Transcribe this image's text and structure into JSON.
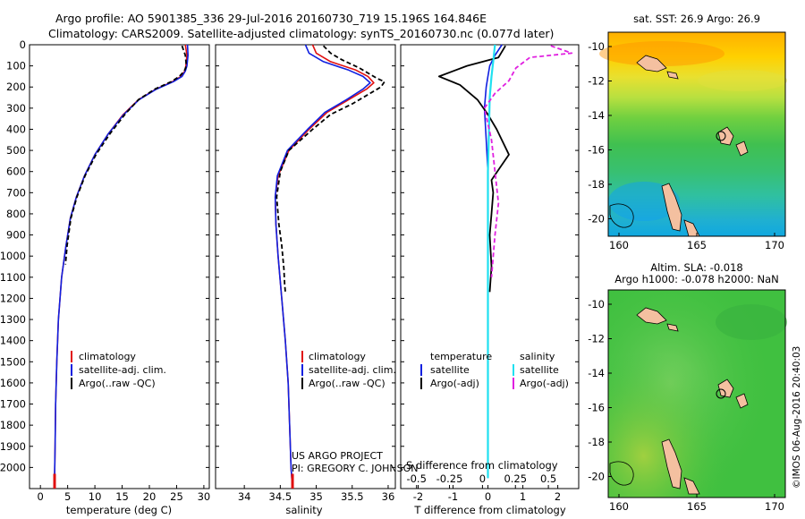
{
  "header": {
    "line1": "Argo profile: AO 5901385_336 29-Jul-2016 20160730_719 15.196S 164.846E",
    "line2": "Climatology: CARS2009. Satellite-adjusted climatology: synTS_20160730.nc (0.077d later)"
  },
  "colors": {
    "climatology": "#e01010",
    "satellite": "#1020e0",
    "argo": "#000000",
    "sat_salinity": "#20e0f0",
    "argo_salinity": "#e020e0"
  },
  "credits": {
    "line1": "US ARGO PROJECT",
    "line2": "PI: GREGORY C. JOHNSON",
    "imos": "©IMOS 06-Aug-2016 20:40:03"
  },
  "chart_data": [
    {
      "type": "line",
      "panel": "temperature",
      "xlabel": "temperature (deg C)",
      "ylabel": "",
      "xlim": [
        -2,
        31
      ],
      "ylim": [
        2100,
        0
      ],
      "xticks": [
        "0",
        "5",
        "10",
        "15",
        "20",
        "25",
        "30"
      ],
      "yticks": [
        "0",
        "100",
        "200",
        "300",
        "400",
        "500",
        "600",
        "700",
        "800",
        "900",
        "1000",
        "1100",
        "1200",
        "1300",
        "1400",
        "1500",
        "1600",
        "1700",
        "1800",
        "1900",
        "2000"
      ],
      "legend": [
        "climatology",
        "satellite-adj. clim.",
        "Argo(..raw -QC)"
      ],
      "series": [
        {
          "name": "climatology",
          "x": [
            26.6,
            26.9,
            26.7,
            26.5,
            25.8,
            24.2,
            21.2,
            18.0,
            15.2,
            12.5,
            10.0,
            8.1,
            6.6,
            5.5,
            4.7,
            3.9,
            3.3,
            3.0,
            2.8,
            2.7,
            2.6,
            2.5
          ],
          "y": [
            0,
            50,
            100,
            125,
            150,
            175,
            210,
            260,
            330,
            420,
            520,
            620,
            720,
            820,
            950,
            1100,
            1300,
            1500,
            1700,
            1900,
            2050,
            2100
          ]
        },
        {
          "name": "satellite-adj. clim.",
          "x": [
            27.0,
            27.1,
            26.9,
            26.6,
            26.0,
            24.4,
            21.3,
            18.1,
            15.3,
            12.5,
            10.0,
            8.1,
            6.6,
            5.5,
            4.7,
            3.9,
            3.3,
            3.0,
            2.8,
            2.7,
            2.6,
            2.5
          ],
          "y": [
            0,
            50,
            100,
            125,
            150,
            175,
            210,
            260,
            330,
            420,
            520,
            620,
            720,
            820,
            950,
            1100,
            1300,
            1500,
            1700,
            1900,
            2050,
            2100
          ]
        },
        {
          "name": "Argo(..raw -QC)",
          "x": [
            26.0,
            26.6,
            26.8,
            26.4,
            25.5,
            24.0,
            21.0,
            18.0,
            15.5,
            12.8,
            10.2,
            8.2,
            6.7,
            5.6,
            4.9,
            4.6
          ],
          "y": [
            5,
            50,
            100,
            125,
            150,
            175,
            210,
            260,
            330,
            420,
            520,
            620,
            720,
            820,
            950,
            1040
          ]
        }
      ]
    },
    {
      "type": "line",
      "panel": "salinity",
      "xlabel": "salinity",
      "ylabel": "",
      "xlim": [
        33.6,
        36.1
      ],
      "ylim": [
        2100,
        0
      ],
      "xticks": [
        "34",
        "34.5",
        "35",
        "35.5",
        "36"
      ],
      "legend": [
        "climatology",
        "satellite-adj. clim.",
        "Argo(..raw -QC)"
      ],
      "series": [
        {
          "name": "climatology",
          "x": [
            34.95,
            35.0,
            35.2,
            35.55,
            35.72,
            35.8,
            35.7,
            35.45,
            35.15,
            34.9,
            34.62,
            34.47,
            34.43,
            34.44,
            34.47,
            34.52,
            34.57,
            34.61,
            34.63,
            34.65,
            34.67
          ],
          "y": [
            0,
            40,
            80,
            120,
            150,
            180,
            210,
            260,
            320,
            400,
            500,
            620,
            720,
            850,
            1000,
            1200,
            1400,
            1600,
            1800,
            2000,
            2100
          ]
        },
        {
          "name": "satellite-adj. clim.",
          "x": [
            34.85,
            34.9,
            35.1,
            35.45,
            35.65,
            35.75,
            35.65,
            35.42,
            35.12,
            34.88,
            34.6,
            34.46,
            34.43,
            34.44,
            34.47,
            34.52,
            34.57,
            34.61,
            34.63,
            34.65,
            34.67
          ],
          "y": [
            0,
            40,
            80,
            120,
            150,
            180,
            210,
            260,
            320,
            400,
            500,
            620,
            720,
            850,
            1000,
            1200,
            1400,
            1600,
            1800,
            2000,
            2100
          ]
        },
        {
          "name": "Argo(..raw -QC)",
          "x": [
            35.1,
            35.2,
            35.35,
            35.6,
            35.75,
            35.85,
            35.95,
            35.9,
            35.7,
            35.5,
            35.2,
            34.95,
            34.62,
            34.5,
            34.45,
            34.48,
            34.52,
            34.55,
            34.56,
            34.57
          ],
          "y": [
            5,
            40,
            70,
            110,
            140,
            160,
            175,
            200,
            240,
            280,
            330,
            400,
            500,
            600,
            720,
            850,
            950,
            1060,
            1130,
            1170
          ]
        }
      ]
    },
    {
      "type": "line",
      "panel": "difference",
      "xlabel": "T difference from climatology",
      "xlabel2": "S difference from climatology",
      "xlim": [
        -2.5,
        2.6
      ],
      "ylim": [
        2100,
        0
      ],
      "xticks": [
        "-2",
        "-1",
        "0",
        "1",
        "2"
      ],
      "xticks2": [
        "-0.5",
        "-0.25",
        "0",
        "0.25",
        "0.5"
      ],
      "legend": [
        "temperature",
        "salinity",
        "satellite",
        "satellite",
        "Argo(-adj)",
        "Argo(-adj)"
      ],
      "series": [
        {
          "name": "satellite",
          "x": [
            0.4,
            0.2,
            0.05,
            0.0,
            -0.05,
            -0.1,
            -0.05,
            0.0,
            0.0,
            0.0,
            0.0,
            0.0
          ],
          "y": [
            0,
            50,
            100,
            150,
            200,
            300,
            450,
            600,
            800,
            1100,
            1500,
            2050
          ]
        },
        {
          "name": "Argo(-adj)",
          "x": [
            0.5,
            0.3,
            -0.6,
            -1.4,
            -0.8,
            -0.3,
            0.0,
            0.25,
            0.6,
            0.35,
            0.1,
            0.15,
            0.1,
            0.05,
            0.1,
            0.05
          ],
          "y": [
            5,
            60,
            100,
            150,
            190,
            260,
            330,
            400,
            520,
            580,
            640,
            700,
            800,
            900,
            1050,
            1170
          ]
        },
        {
          "name": "satellite",
          "x": [
            0.2,
            0.15,
            0.1,
            0.05,
            0.03,
            0.0,
            0.0,
            0.0,
            0.0
          ],
          "y": [
            0,
            80,
            150,
            250,
            400,
            600,
            900,
            1300,
            2050
          ]
        },
        {
          "name": "Argo(-adj)",
          "x": [
            1.8,
            2.4,
            1.2,
            0.8,
            0.6,
            0.2,
            -0.1,
            0.1,
            0.2,
            0.3,
            0.2,
            0.1
          ],
          "y": [
            5,
            40,
            60,
            110,
            170,
            230,
            300,
            450,
            600,
            750,
            900,
            1100
          ]
        }
      ]
    },
    {
      "type": "heatmap",
      "panel": "sst-map",
      "title": "sat. SST: 26.9 Argo: 26.9",
      "xticks": [
        "160",
        "165",
        "170"
      ],
      "yticks": [
        "-10",
        "-12",
        "-14",
        "-16",
        "-18",
        "-20"
      ]
    },
    {
      "type": "heatmap",
      "panel": "sla-map",
      "title": "Altim. SLA: -0.018",
      "subtitle": "Argo h1000: -0.078 h2000: NaN",
      "xticks": [
        "160",
        "165",
        "170"
      ],
      "yticks": [
        "-10",
        "-12",
        "-14",
        "-16",
        "-18",
        "-20"
      ]
    }
  ]
}
